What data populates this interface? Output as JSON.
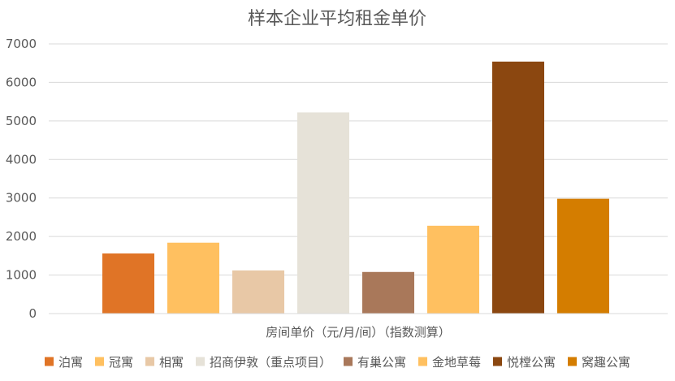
{
  "chart_data": {
    "type": "bar",
    "title": "样本企业平均租金单价",
    "xlabel": "房间单价（元/月/间）（指数测算）",
    "ylabel": "",
    "ylim": [
      0,
      7000
    ],
    "yticks": [
      0,
      1000,
      2000,
      3000,
      4000,
      5000,
      6000,
      7000
    ],
    "grid": true,
    "legend_position": "bottom",
    "categories": [
      "泊寓",
      "冠寓",
      "相寓",
      "招商伊敦（重点项目）",
      "有巢公寓",
      "金地草莓",
      "悦樘公寓",
      "窝趣公寓"
    ],
    "values": [
      1560,
      1840,
      1120,
      5220,
      1080,
      2280,
      6540,
      2980
    ],
    "colors": [
      "#E07426",
      "#FFC060",
      "#E8C8A6",
      "#E6E2D8",
      "#A9785A",
      "#FFC060",
      "#8B4710",
      "#D47D00"
    ]
  }
}
